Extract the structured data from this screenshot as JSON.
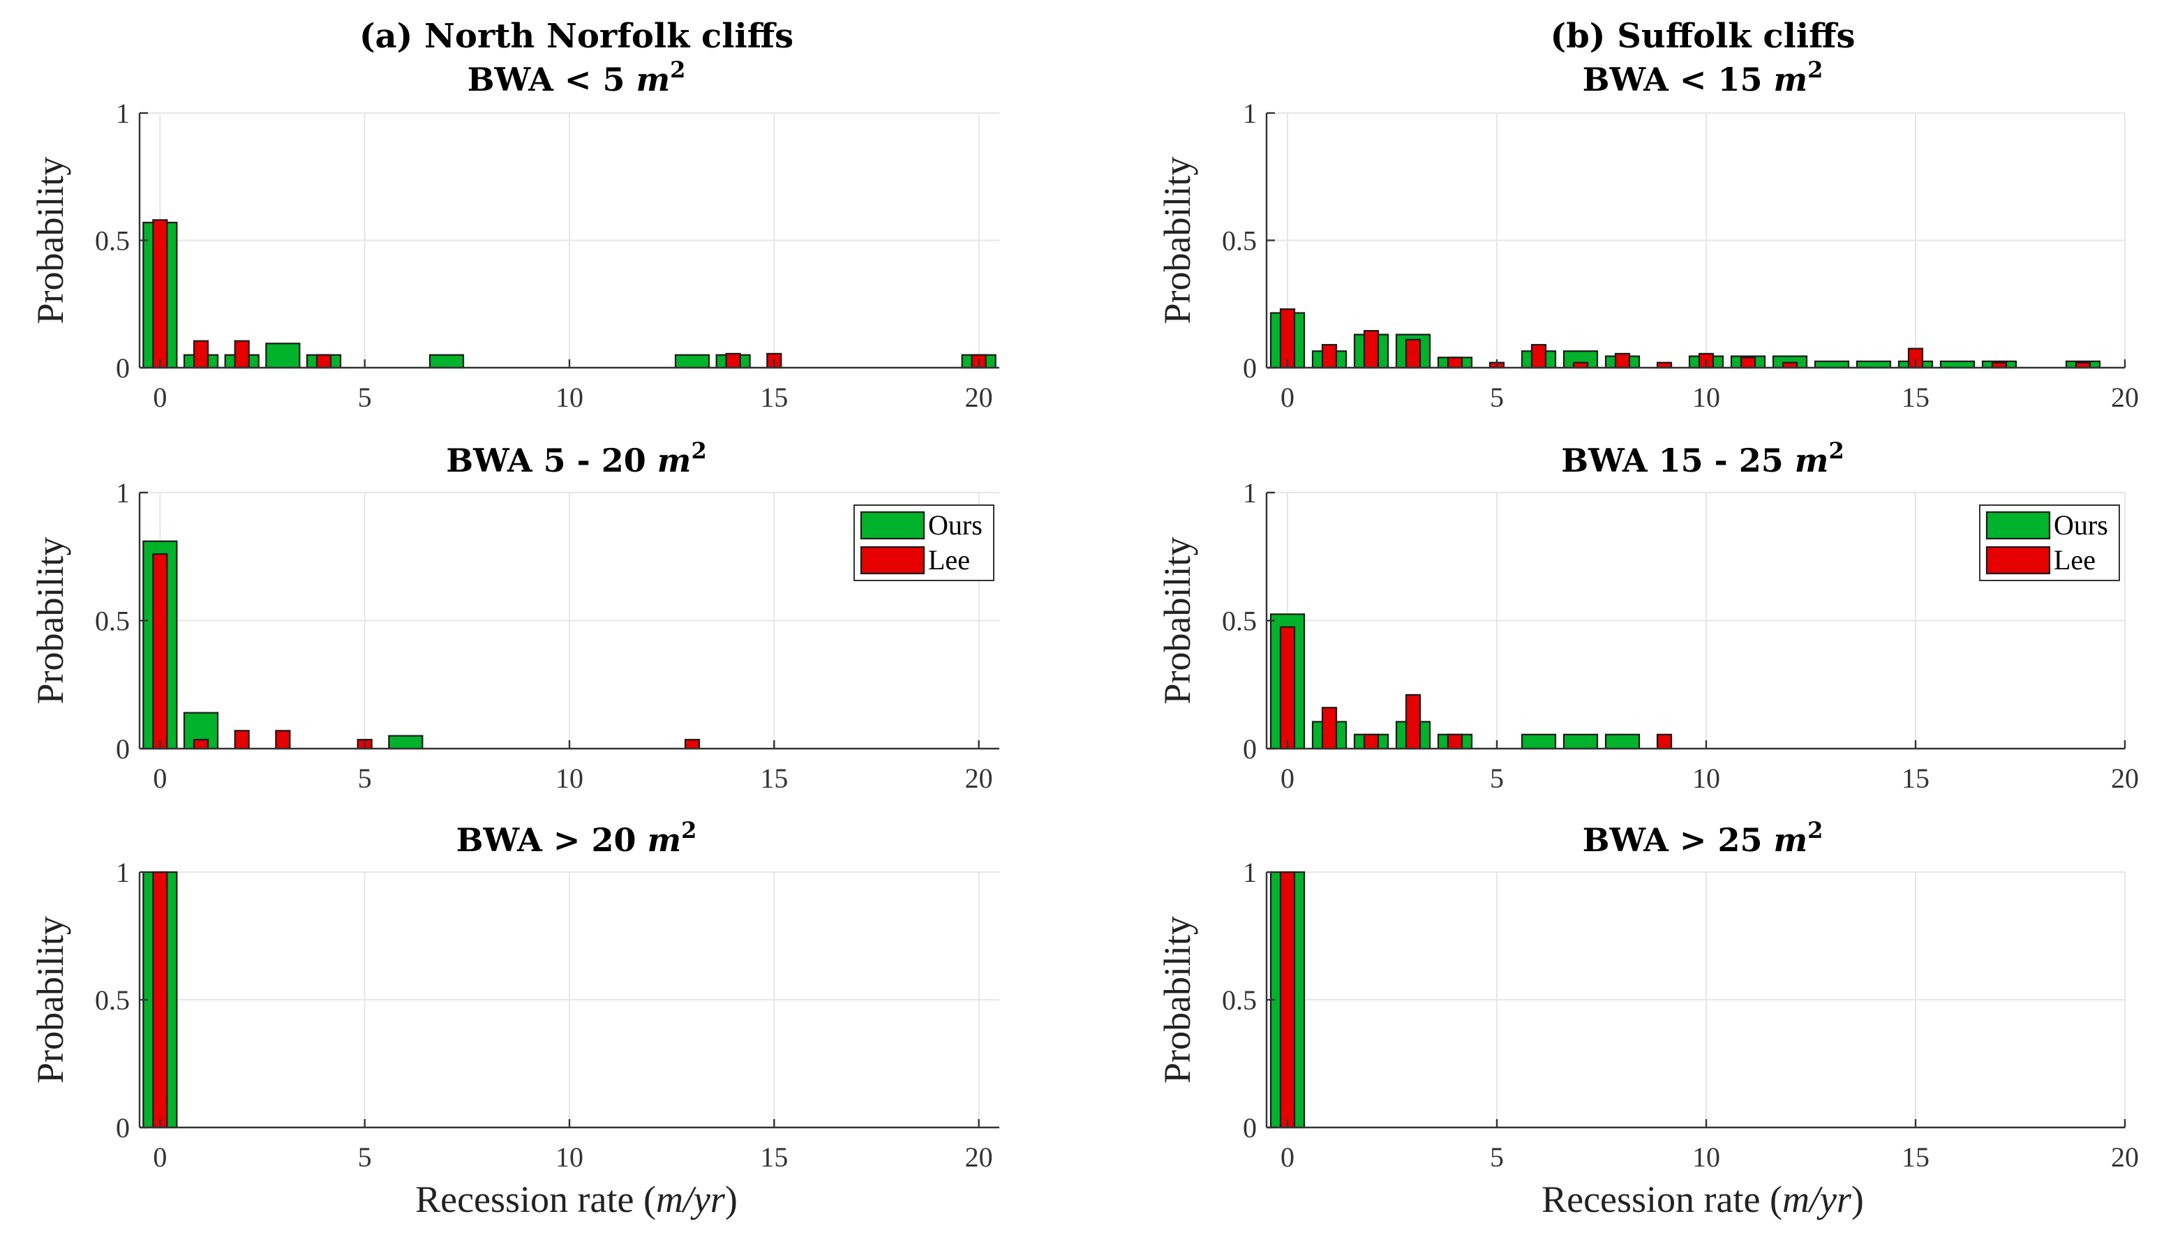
{
  "chart_data": [
    {
      "type": "bar",
      "column_title": "(a) North Norfolk cliffs",
      "title": "BWA < 5 m^2",
      "ylabel": "Probability",
      "xlabel": "",
      "xlim": [
        -0.5,
        20.5
      ],
      "ylim": [
        0,
        1
      ],
      "xticks": [
        "0",
        "5",
        "10",
        "15",
        "20"
      ],
      "yticks": [
        "0",
        "0.5",
        "1"
      ],
      "legend": null,
      "series": [
        {
          "name": "Ours",
          "color": "#00b32a",
          "x": [
            0,
            1,
            2,
            3,
            4,
            7,
            13,
            14,
            20
          ],
          "values": [
            0.57,
            0.05,
            0.05,
            0.095,
            0.05,
            0.05,
            0.05,
            0.05,
            0.05
          ]
        },
        {
          "name": "Lee",
          "color": "#e60000",
          "x": [
            0,
            1,
            2,
            4,
            14,
            15,
            20
          ],
          "values": [
            0.58,
            0.105,
            0.105,
            0.05,
            0.055,
            0.055,
            0.05
          ]
        }
      ]
    },
    {
      "type": "bar",
      "column_title": "(b) Suffolk cliffs",
      "title": "BWA < 15 m^2",
      "ylabel": "Probability",
      "xlabel": "",
      "xlim": [
        -0.5,
        20
      ],
      "ylim": [
        0,
        1
      ],
      "xticks": [
        "0",
        "5",
        "10",
        "15",
        "20"
      ],
      "yticks": [
        "0",
        "0.5",
        "1"
      ],
      "legend": null,
      "series": [
        {
          "name": "Ours",
          "color": "#00b32a",
          "x": [
            0,
            1,
            2,
            3,
            4,
            6,
            7,
            8,
            10,
            11,
            12,
            13,
            14,
            15,
            16,
            17,
            19
          ],
          "values": [
            0.215,
            0.065,
            0.13,
            0.13,
            0.04,
            0.065,
            0.065,
            0.045,
            0.045,
            0.045,
            0.045,
            0.025,
            0.025,
            0.025,
            0.025,
            0.025,
            0.025
          ]
        },
        {
          "name": "Lee",
          "color": "#e60000",
          "x": [
            0,
            1,
            2,
            3,
            4,
            5,
            6,
            7,
            8,
            9,
            10,
            11,
            12,
            15,
            17,
            19
          ],
          "values": [
            0.23,
            0.09,
            0.145,
            0.11,
            0.04,
            0.02,
            0.09,
            0.02,
            0.055,
            0.02,
            0.055,
            0.04,
            0.02,
            0.075,
            0.02,
            0.02
          ]
        }
      ]
    },
    {
      "type": "bar",
      "title": "BWA 5 - 20 m^2",
      "ylabel": "Probability",
      "xlabel": "",
      "xlim": [
        -0.5,
        20.5
      ],
      "ylim": [
        0,
        1
      ],
      "xticks": [
        "0",
        "5",
        "10",
        "15",
        "20"
      ],
      "yticks": [
        "0",
        "0.5",
        "1"
      ],
      "legend": [
        "Ours",
        "Lee"
      ],
      "series": [
        {
          "name": "Ours",
          "color": "#00b32a",
          "x": [
            0,
            1,
            6
          ],
          "values": [
            0.81,
            0.14,
            0.05
          ]
        },
        {
          "name": "Lee",
          "color": "#e60000",
          "x": [
            0,
            1,
            2,
            3,
            5,
            13
          ],
          "values": [
            0.76,
            0.035,
            0.07,
            0.07,
            0.035,
            0.035
          ]
        }
      ]
    },
    {
      "type": "bar",
      "title": "BWA 15 - 25 m^2",
      "ylabel": "Probability",
      "xlabel": "",
      "xlim": [
        -0.5,
        20
      ],
      "ylim": [
        0,
        1
      ],
      "xticks": [
        "0",
        "5",
        "10",
        "15",
        "20"
      ],
      "yticks": [
        "0",
        "0.5",
        "1"
      ],
      "legend": [
        "Ours",
        "Lee"
      ],
      "series": [
        {
          "name": "Ours",
          "color": "#00b32a",
          "x": [
            0,
            1,
            2,
            3,
            4,
            6,
            7,
            8
          ],
          "values": [
            0.525,
            0.105,
            0.055,
            0.105,
            0.055,
            0.055,
            0.055,
            0.055
          ]
        },
        {
          "name": "Lee",
          "color": "#e60000",
          "x": [
            0,
            1,
            2,
            3,
            4,
            9
          ],
          "values": [
            0.475,
            0.16,
            0.055,
            0.21,
            0.055,
            0.055
          ]
        }
      ]
    },
    {
      "type": "bar",
      "title": "BWA > 20 m^2",
      "ylabel": "Probability",
      "xlabel": "Recession rate (m/yr)",
      "xlim": [
        -0.5,
        20.5
      ],
      "ylim": [
        0,
        1
      ],
      "xticks": [
        "0",
        "5",
        "10",
        "15",
        "20"
      ],
      "yticks": [
        "0",
        "0.5",
        "1"
      ],
      "legend": null,
      "series": [
        {
          "name": "Ours",
          "color": "#00b32a",
          "x": [
            0
          ],
          "values": [
            1.0
          ]
        },
        {
          "name": "Lee",
          "color": "#e60000",
          "x": [
            0
          ],
          "values": [
            1.0
          ]
        }
      ]
    },
    {
      "type": "bar",
      "title": "BWA > 25 m^2",
      "ylabel": "Probability",
      "xlabel": "Recession rate (m/yr)",
      "xlim": [
        -0.5,
        20
      ],
      "ylim": [
        0,
        1
      ],
      "xticks": [
        "0",
        "5",
        "10",
        "15",
        "20"
      ],
      "yticks": [
        "0",
        "0.5",
        "1"
      ],
      "legend": null,
      "series": [
        {
          "name": "Ours",
          "color": "#00b32a",
          "x": [
            0
          ],
          "values": [
            1.0
          ]
        },
        {
          "name": "Lee",
          "color": "#e60000",
          "x": [
            0
          ],
          "values": [
            1.0
          ]
        }
      ]
    }
  ]
}
